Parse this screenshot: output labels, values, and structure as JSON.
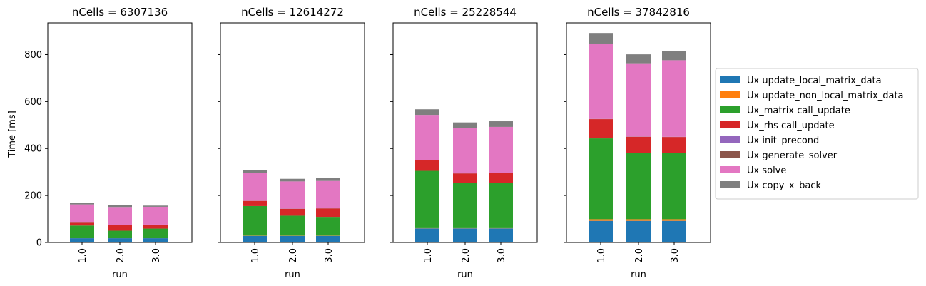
{
  "figure": {
    "ylabel": "Time [ms]",
    "xlabel": "run"
  },
  "chart_data": {
    "type": "bar",
    "stacked": true,
    "ylim": [
      0,
      935
    ],
    "yticks": [
      0,
      200,
      400,
      600,
      800
    ],
    "categories": [
      "1.0",
      "2.0",
      "3.0"
    ],
    "legend": {
      "placement": "right",
      "series": [
        {
          "name": "Ux update_local_matrix_data",
          "color": "#1f77b4"
        },
        {
          "name": "Ux update_non_local_matrix_data",
          "color": "#ff7f0e"
        },
        {
          "name": "Ux_matrix call_update",
          "color": "#2ca02c"
        },
        {
          "name": "Ux_rhs call_update",
          "color": "#d62728"
        },
        {
          "name": "Ux init_precond",
          "color": "#9467bd"
        },
        {
          "name": "Ux generate_solver",
          "color": "#8c564b"
        },
        {
          "name": "Ux solve",
          "color": "#e377c2"
        },
        {
          "name": "Ux copy_x_back",
          "color": "#7f7f7f"
        }
      ]
    },
    "panels": [
      {
        "title": "nCells = 6307136",
        "values": [
          [
            18,
            1,
            53,
            15,
            0.5,
            0.5,
            74,
            6
          ],
          [
            18,
            1,
            31,
            24,
            0.5,
            0.5,
            76,
            8
          ],
          [
            18,
            1,
            40,
            16,
            0.5,
            0.5,
            76,
            5
          ]
        ]
      },
      {
        "title": "nCells = 12614272",
        "values": [
          [
            28,
            1,
            126,
            22,
            0.5,
            0.5,
            117,
            13
          ],
          [
            28,
            1,
            85,
            29,
            0.5,
            0.5,
            116,
            11
          ],
          [
            28,
            1,
            80,
            36,
            0.5,
            0.5,
            116,
            12
          ]
        ]
      },
      {
        "title": "nCells = 25228544",
        "values": [
          [
            60,
            4,
            241,
            45,
            0.5,
            0.5,
            192,
            24
          ],
          [
            60,
            4,
            188,
            42,
            0.5,
            0.5,
            191,
            25
          ],
          [
            60,
            4,
            191,
            40,
            0.5,
            0.5,
            196,
            24
          ]
        ]
      },
      {
        "title": "nCells = 37842816",
        "values": [
          [
            92,
            7,
            344,
            82,
            0.5,
            0.5,
            321,
            45
          ],
          [
            92,
            7,
            282,
            69,
            0.5,
            0.5,
            309,
            41
          ],
          [
            92,
            7,
            282,
            68,
            0.5,
            0.5,
            326,
            40
          ]
        ]
      }
    ]
  }
}
